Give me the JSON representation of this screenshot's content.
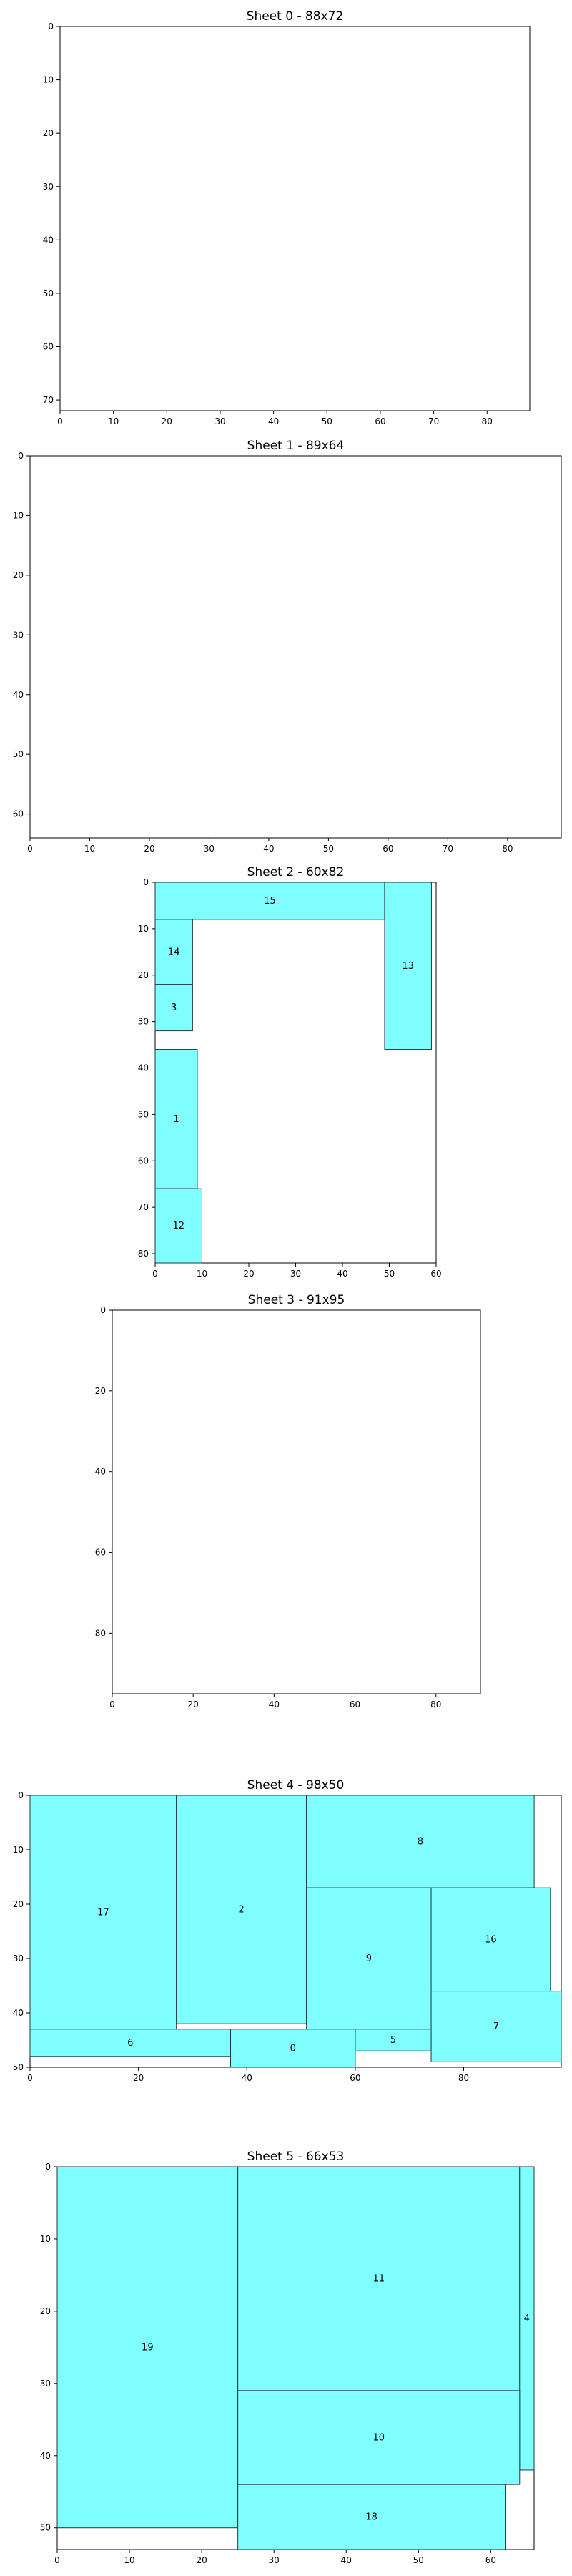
{
  "chart_data": [
    {
      "type": "rectangle-packing",
      "title": "Sheet 0 - 88x72",
      "xlim": [
        0,
        88
      ],
      "ylim": [
        0,
        72
      ],
      "xticks": [
        0,
        10,
        20,
        30,
        40,
        50,
        60,
        70,
        80
      ],
      "yticks": [
        0,
        10,
        20,
        30,
        40,
        50,
        60,
        70
      ],
      "pieces": []
    },
    {
      "type": "rectangle-packing",
      "title": "Sheet 1 - 89x64",
      "xlim": [
        0,
        89
      ],
      "ylim": [
        0,
        64
      ],
      "xticks": [
        0,
        10,
        20,
        30,
        40,
        50,
        60,
        70,
        80
      ],
      "yticks": [
        0,
        10,
        20,
        30,
        40,
        50,
        60
      ],
      "pieces": []
    },
    {
      "type": "rectangle-packing",
      "title": "Sheet 2 - 60x82",
      "xlim": [
        0,
        60
      ],
      "ylim": [
        0,
        82
      ],
      "xticks": [
        0,
        10,
        20,
        30,
        40,
        50,
        60
      ],
      "yticks": [
        0,
        10,
        20,
        30,
        40,
        50,
        60,
        70,
        80
      ],
      "pieces": [
        {
          "label": "15",
          "x": 0,
          "y": 0,
          "w": 49,
          "h": 8
        },
        {
          "label": "13",
          "x": 49,
          "y": 0,
          "w": 10,
          "h": 36
        },
        {
          "label": "14",
          "x": 0,
          "y": 8,
          "w": 8,
          "h": 14
        },
        {
          "label": "3",
          "x": 0,
          "y": 22,
          "w": 8,
          "h": 10
        },
        {
          "label": "1",
          "x": 0,
          "y": 36,
          "w": 9,
          "h": 30
        },
        {
          "label": "12",
          "x": 0,
          "y": 66,
          "w": 10,
          "h": 16
        }
      ]
    },
    {
      "type": "rectangle-packing",
      "title": "Sheet 3 - 91x95",
      "xlim": [
        0,
        91
      ],
      "ylim": [
        0,
        95
      ],
      "xticks": [
        0,
        20,
        40,
        60,
        80
      ],
      "yticks": [
        0,
        20,
        40,
        60,
        80
      ],
      "pieces": []
    },
    {
      "type": "rectangle-packing",
      "title": "Sheet 4 - 98x50",
      "xlim": [
        0,
        98
      ],
      "ylim": [
        0,
        50
      ],
      "xticks": [
        0,
        20,
        40,
        60,
        80
      ],
      "yticks": [
        0,
        10,
        20,
        30,
        40,
        50
      ],
      "pieces": [
        {
          "label": "17",
          "x": 0,
          "y": 0,
          "w": 27,
          "h": 43
        },
        {
          "label": "2",
          "x": 27,
          "y": 0,
          "w": 24,
          "h": 42
        },
        {
          "label": "8",
          "x": 51,
          "y": 0,
          "w": 42,
          "h": 17
        },
        {
          "label": "9",
          "x": 51,
          "y": 17,
          "w": 23,
          "h": 26
        },
        {
          "label": "16",
          "x": 74,
          "y": 17,
          "w": 22,
          "h": 19
        },
        {
          "label": "7",
          "x": 74,
          "y": 36,
          "w": 24,
          "h": 13
        },
        {
          "label": "6",
          "x": 0,
          "y": 43,
          "w": 37,
          "h": 5
        },
        {
          "label": "0",
          "x": 37,
          "y": 43,
          "w": 23,
          "h": 7
        },
        {
          "label": "5",
          "x": 60,
          "y": 43,
          "w": 14,
          "h": 4
        }
      ]
    },
    {
      "type": "rectangle-packing",
      "title": "Sheet 5 - 66x53",
      "xlim": [
        0,
        66
      ],
      "ylim": [
        0,
        53
      ],
      "xticks": [
        0,
        10,
        20,
        30,
        40,
        50,
        60
      ],
      "yticks": [
        0,
        10,
        20,
        30,
        40,
        50
      ],
      "pieces": [
        {
          "label": "19",
          "x": 0,
          "y": 0,
          "w": 25,
          "h": 50
        },
        {
          "label": "11",
          "x": 25,
          "y": 0,
          "w": 39,
          "h": 31
        },
        {
          "label": "4",
          "x": 64,
          "y": 0,
          "w": 2,
          "h": 42
        },
        {
          "label": "10",
          "x": 25,
          "y": 31,
          "w": 39,
          "h": 13
        },
        {
          "label": "18",
          "x": 25,
          "y": 44,
          "w": 37,
          "h": 9
        }
      ]
    }
  ]
}
